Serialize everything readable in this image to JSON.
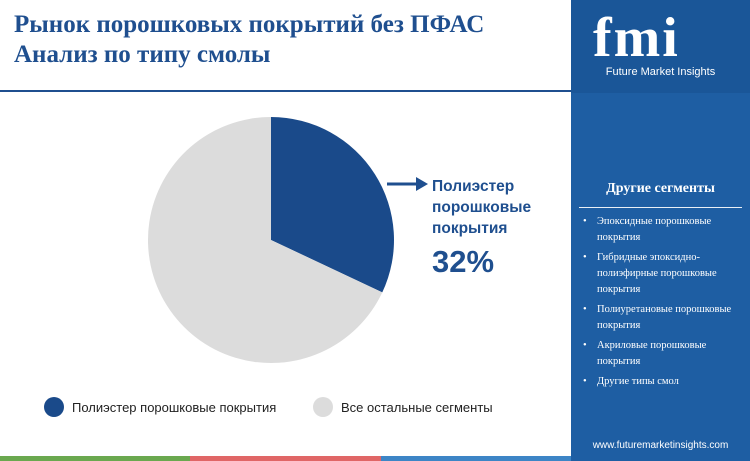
{
  "header": {
    "title": "Рынок порошковых покрытий без ПФАС Анализ по типу смолы"
  },
  "brand": {
    "logo": "fmi",
    "name": "Future Market Insights",
    "url": "www.futuremarketinsights.com"
  },
  "panel": {
    "title": "Другие сегменты",
    "items": [
      "Эпоксидные порошковые покрытия",
      "Гибридные эпоксидно-полиэфирные порошковые покрытия",
      "Полиуретановые порошковые покрытия",
      "Акриловые порошковые покрытия",
      "Другие типы смол"
    ]
  },
  "callout": {
    "label": "Полиэстер порошковые покрытия",
    "value": "32%"
  },
  "colors": {
    "primary": "#1f4f8f",
    "rest": "#dcdcdc",
    "panel": "#1e5ea3",
    "bottom_bar": [
      "#6aa84f",
      "#e06666",
      "#3d85c6"
    ]
  },
  "chart_data": {
    "type": "pie",
    "title": "Рынок порошковых покрытий без ПФАС Анализ по типу смолы",
    "slices": [
      {
        "name": "Полиэстер порошковые покрытия",
        "value": 32,
        "color": "#1a4a8a"
      },
      {
        "name": "Все остальные сегменты",
        "value": 68,
        "color": "#dcdcdc"
      }
    ],
    "legend_position": "bottom"
  }
}
